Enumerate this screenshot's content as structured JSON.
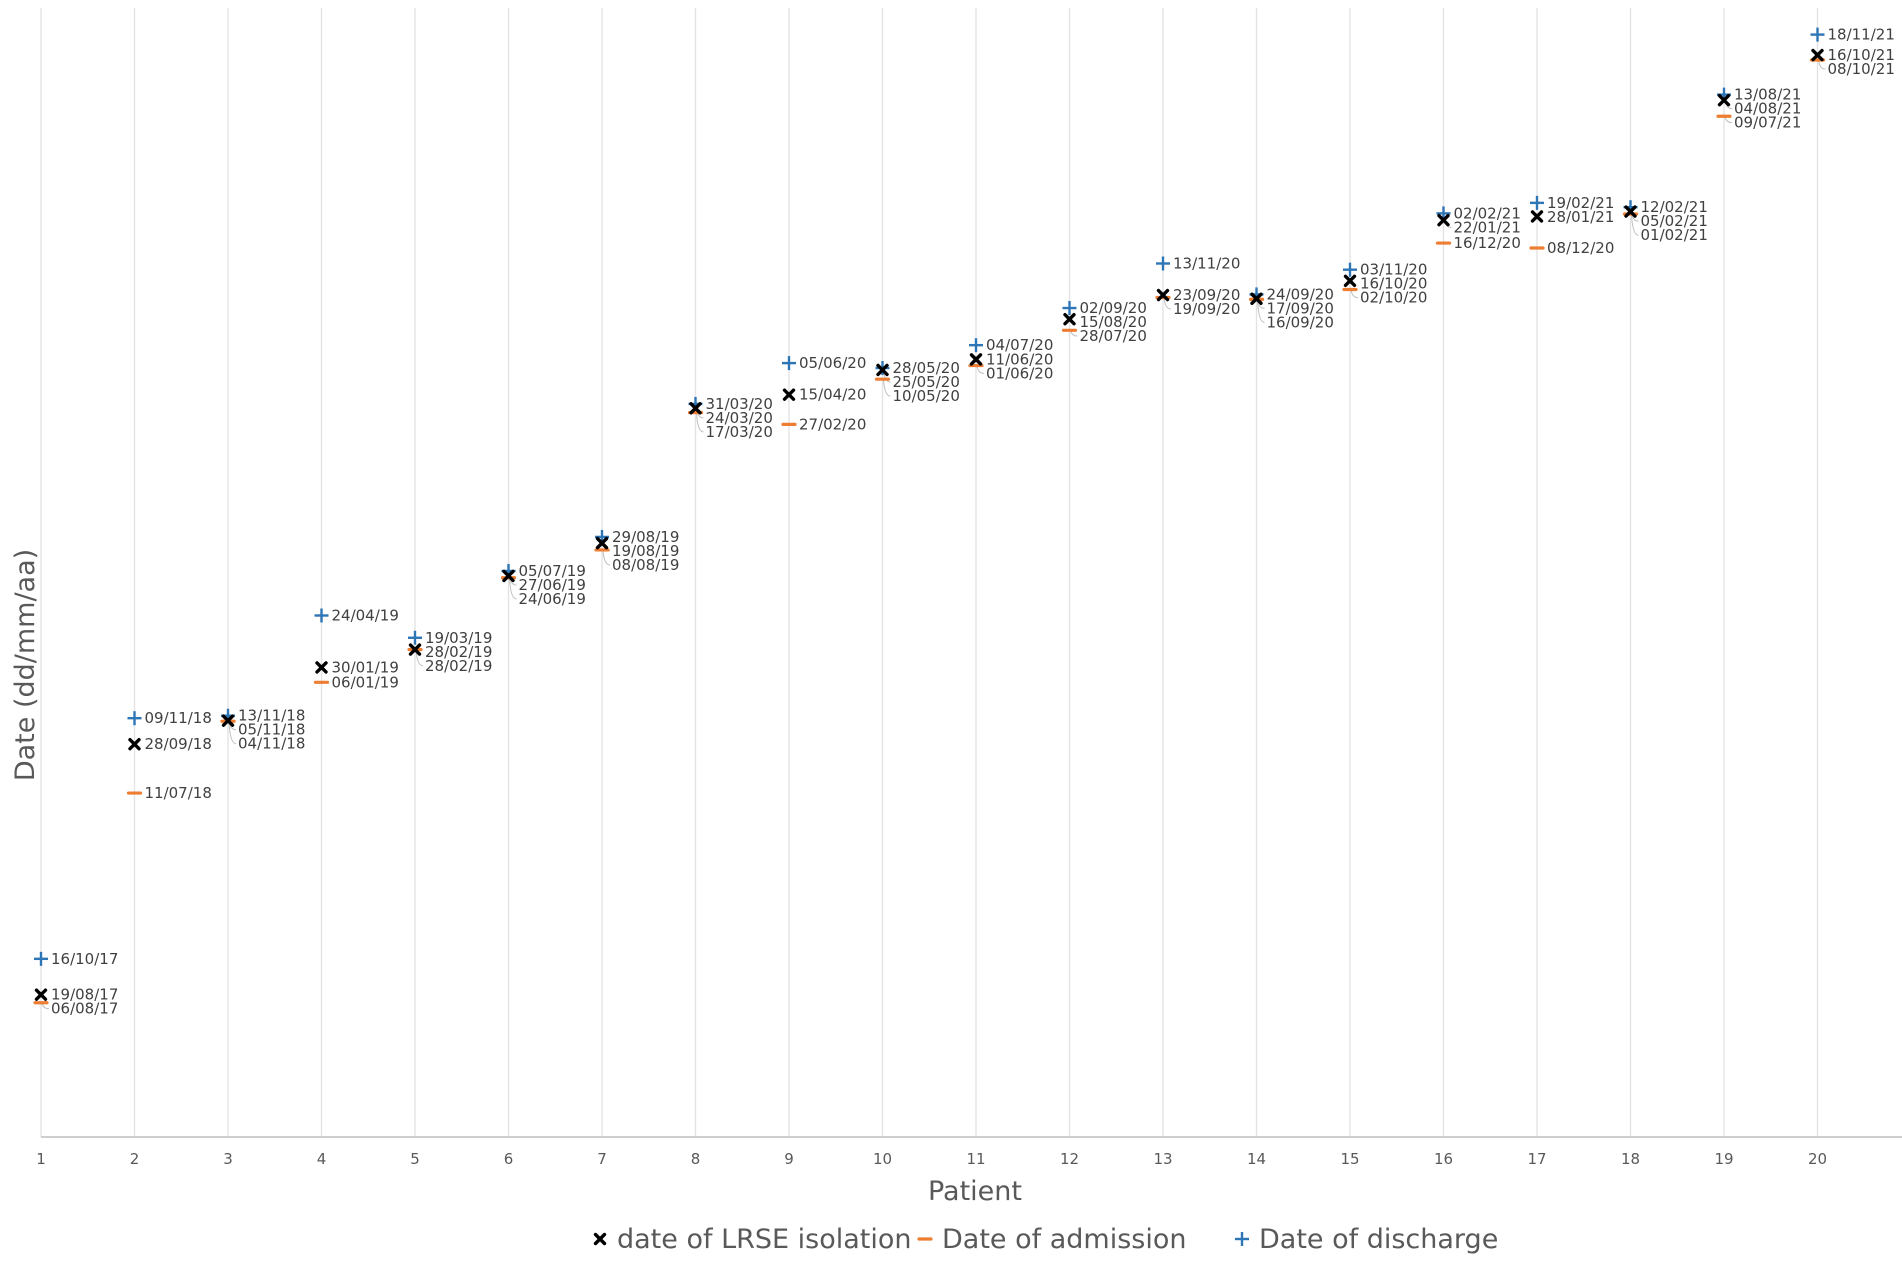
{
  "chart_data": {
    "type": "scatter",
    "xlabel": "Patient",
    "ylabel": "Date (dd/mm/aa)",
    "x": [
      1,
      2,
      3,
      4,
      5,
      6,
      7,
      8,
      9,
      10,
      11,
      12,
      13,
      14,
      15,
      16,
      17,
      18,
      19,
      20
    ],
    "xlim": [
      1,
      21
    ],
    "ylim": [
      "01/01/17",
      "31/12/21"
    ],
    "grid": "vertical",
    "legend_position": "bottom",
    "series": [
      {
        "name": "date of LRSE isolation",
        "marker": "x",
        "color": "#000000",
        "values": [
          "19/08/17",
          "28/09/18",
          "05/11/18",
          "30/01/19",
          "28/02/19",
          "27/06/19",
          "19/08/19",
          "24/03/20",
          "15/04/20",
          "25/05/20",
          "11/06/20",
          "15/08/20",
          "23/09/20",
          "17/09/20",
          "16/10/20",
          "22/01/21",
          "28/01/21",
          "05/02/21",
          "04/08/21",
          "16/10/21"
        ]
      },
      {
        "name": "Date of admission",
        "marker": "dash",
        "color": "#ed7d31",
        "values": [
          "06/08/17",
          "11/07/18",
          "04/11/18",
          "06/01/19",
          "28/02/19",
          "24/06/19",
          "08/08/19",
          "17/03/20",
          "27/02/20",
          "10/05/20",
          "01/06/20",
          "28/07/20",
          "19/09/20",
          "16/09/20",
          "02/10/20",
          "16/12/20",
          "08/12/20",
          "01/02/21",
          "09/07/21",
          "08/10/21"
        ]
      },
      {
        "name": "Date of discharge",
        "marker": "plus",
        "color": "#2e75b6",
        "values": [
          "16/10/17",
          "09/11/18",
          "13/11/18",
          "24/04/19",
          "19/03/19",
          "05/07/19",
          "29/08/19",
          "31/03/20",
          "05/06/20",
          "28/05/20",
          "04/07/20",
          "02/09/20",
          "13/11/20",
          "24/09/20",
          "03/11/20",
          "02/02/21",
          "19/02/21",
          "12/02/21",
          "13/08/21",
          "18/11/21"
        ]
      }
    ]
  }
}
